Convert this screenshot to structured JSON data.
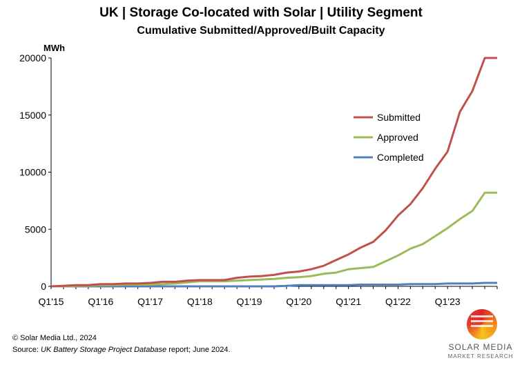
{
  "chart_data": {
    "type": "line",
    "title": "UK | Storage Co-located with Solar | Utility Segment",
    "subtitle": "Cumulative Submitted/Approved/Built Capacity",
    "ylabel": "MWh",
    "xlabel": "",
    "ylim": [
      0,
      20000
    ],
    "yticks": [
      "0",
      "5000",
      "10000",
      "15000",
      "20000"
    ],
    "xticks": [
      "Q1'15",
      "Q1'16",
      "Q1'17",
      "Q1'18",
      "Q1'19",
      "Q1'20",
      "Q1'21",
      "Q1'22",
      "Q1'23"
    ],
    "x": [
      "Q1'15",
      "Q2'15",
      "Q3'15",
      "Q4'15",
      "Q1'16",
      "Q2'16",
      "Q3'16",
      "Q4'16",
      "Q1'17",
      "Q2'17",
      "Q3'17",
      "Q4'17",
      "Q1'18",
      "Q2'18",
      "Q3'18",
      "Q4'18",
      "Q1'19",
      "Q2'19",
      "Q3'19",
      "Q4'19",
      "Q1'20",
      "Q2'20",
      "Q3'20",
      "Q4'20",
      "Q1'21",
      "Q2'21",
      "Q3'21",
      "Q4'21",
      "Q1'22",
      "Q2'22",
      "Q3'22",
      "Q4'22",
      "Q1'23",
      "Q2'23",
      "Q3'23",
      "Q4'23",
      "Q1'24"
    ],
    "legend_position": "center-right",
    "grid": false,
    "series": [
      {
        "name": "Submitted",
        "color": "#c0504d",
        "values": [
          0,
          50,
          100,
          100,
          200,
          200,
          250,
          250,
          300,
          400,
          400,
          500,
          550,
          550,
          550,
          750,
          850,
          900,
          1000,
          1200,
          1300,
          1500,
          1800,
          2300,
          2800,
          3400,
          3900,
          4900,
          6200,
          7200,
          8600,
          10300,
          11800,
          15300,
          17100,
          20000,
          20000
        ]
      },
      {
        "name": "Approved",
        "color": "#9bbb59",
        "values": [
          0,
          0,
          50,
          50,
          100,
          100,
          150,
          150,
          150,
          200,
          250,
          350,
          450,
          450,
          450,
          500,
          550,
          600,
          650,
          750,
          800,
          900,
          1100,
          1200,
          1500,
          1600,
          1700,
          2200,
          2700,
          3300,
          3700,
          4400,
          5100,
          5900,
          6600,
          8200,
          8200
        ]
      },
      {
        "name": "Completed",
        "color": "#4f81bd",
        "values": [
          0,
          0,
          0,
          0,
          0,
          0,
          0,
          0,
          0,
          0,
          0,
          0,
          0,
          0,
          0,
          0,
          0,
          0,
          0,
          50,
          100,
          100,
          100,
          100,
          100,
          150,
          150,
          150,
          150,
          200,
          200,
          200,
          250,
          250,
          250,
          300,
          300
        ]
      }
    ]
  },
  "footer": {
    "copyright": "© Solar Media Ltd., 2024",
    "source_prefix": "Source: ",
    "source_italic": "UK Battery Storage Project Database",
    "source_suffix": " report; June 2024."
  },
  "logo": {
    "name": "SOLAR MEDIA",
    "tagline": "MARKET RESEARCH"
  }
}
